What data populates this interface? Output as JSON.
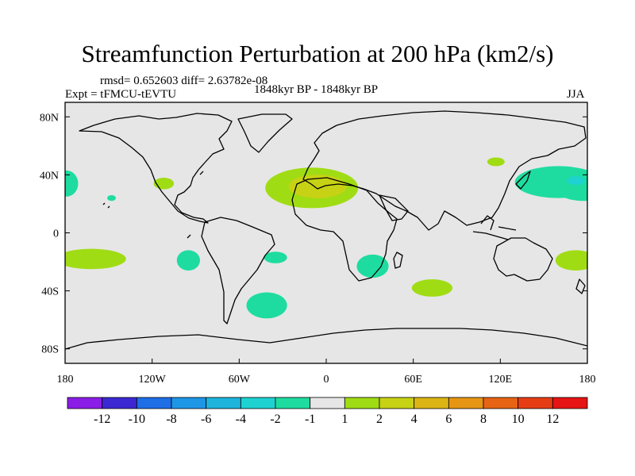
{
  "chart_data": {
    "type": "heatmap",
    "title": "Streamfunction Perturbation at 200 hPa (km2/s)",
    "stats": "rmsd= 0.652603 diff= 2.63782e-08",
    "experiment": "Expt = tFMCU-tEVTU",
    "period": "1848kyr BP - 1848kyr BP",
    "season": "JJA",
    "x_range": [
      -180,
      180
    ],
    "y_range": [
      -90,
      90
    ],
    "x_ticks": [
      {
        "value": -180,
        "label": "180"
      },
      {
        "value": -120,
        "label": "120W"
      },
      {
        "value": -60,
        "label": "60W"
      },
      {
        "value": 0,
        "label": "0"
      },
      {
        "value": 60,
        "label": "60E"
      },
      {
        "value": 120,
        "label": "120E"
      },
      {
        "value": 180,
        "label": "180"
      }
    ],
    "y_ticks": [
      {
        "value": 80,
        "label": "80N"
      },
      {
        "value": 40,
        "label": "40N"
      },
      {
        "value": 0,
        "label": "0"
      },
      {
        "value": -40,
        "label": "40S"
      },
      {
        "value": -80,
        "label": "80S"
      }
    ],
    "colorbar": {
      "labels": [
        "-12",
        "-10",
        "-8",
        "-6",
        "-4",
        "-2",
        "-1",
        "1",
        "2",
        "4",
        "6",
        "8",
        "10",
        "12"
      ],
      "colors": [
        "#8a1ee6",
        "#3c28d2",
        "#1e6ee6",
        "#1e96e6",
        "#1eb4dc",
        "#1ed2d2",
        "#1edca0",
        "#e6e6e6",
        "#a0dc14",
        "#c8d214",
        "#dcb414",
        "#e69614",
        "#e66414",
        "#e63c14",
        "#e61414"
      ]
    },
    "anomaly_regions": [
      {
        "lon": -179,
        "lat": 34,
        "rlon": 8,
        "rlat": 9,
        "level": "-1 to -2",
        "color": "#1edca0"
      },
      {
        "lon": 177,
        "lat": 32,
        "rlon": 20,
        "rlat": 10,
        "level": "-1 to -2",
        "color": "#1edca0"
      },
      {
        "lon": 160,
        "lat": 35,
        "rlon": 30,
        "rlat": 11,
        "level": "-1 to -2",
        "color": "#1edca0"
      },
      {
        "lon": 172,
        "lat": 36,
        "rlon": 6,
        "rlat": 3,
        "level": "-2 to -4",
        "color": "#1ed2d2"
      },
      {
        "lon": 117,
        "lat": 49,
        "rlon": 6,
        "rlat": 3,
        "level": "1 to 2",
        "color": "#a0dc14"
      },
      {
        "lon": -112,
        "lat": 34,
        "rlon": 7,
        "rlat": 4,
        "level": "1 to 2",
        "color": "#a0dc14"
      },
      {
        "lon": -148,
        "lat": 24,
        "rlon": 3,
        "rlat": 2,
        "level": "-1 to -2",
        "color": "#1edca0"
      },
      {
        "lon": -10,
        "lat": 31,
        "rlon": 32,
        "rlat": 14,
        "level": "1 to 2",
        "color": "#a0dc14"
      },
      {
        "lon": -6,
        "lat": 32,
        "rlon": 20,
        "rlat": 8,
        "level": "2 to 4",
        "color": "#c8d214"
      },
      {
        "lon": -162,
        "lat": -18,
        "rlon": 24,
        "rlat": 7,
        "level": "1 to 2",
        "color": "#a0dc14"
      },
      {
        "lon": 172,
        "lat": -19,
        "rlon": 14,
        "rlat": 7,
        "level": "1 to 2",
        "color": "#a0dc14"
      },
      {
        "lon": -95,
        "lat": -19,
        "rlon": 8,
        "rlat": 7,
        "level": "-1 to -2",
        "color": "#1edca0"
      },
      {
        "lon": -35,
        "lat": -17,
        "rlon": 8,
        "rlat": 4,
        "level": "-1 to -2",
        "color": "#1edca0"
      },
      {
        "lon": 32,
        "lat": -23,
        "rlon": 11,
        "rlat": 8,
        "level": "-1 to -2",
        "color": "#1edca0"
      },
      {
        "lon": -41,
        "lat": -50,
        "rlon": 14,
        "rlat": 9,
        "level": "-1 to -2",
        "color": "#1edca0"
      },
      {
        "lon": 73,
        "lat": -38,
        "rlon": 14,
        "rlat": 6,
        "level": "1 to 2",
        "color": "#a0dc14"
      }
    ],
    "background_color": "#e6e6e6",
    "coast_color": "#000000"
  }
}
